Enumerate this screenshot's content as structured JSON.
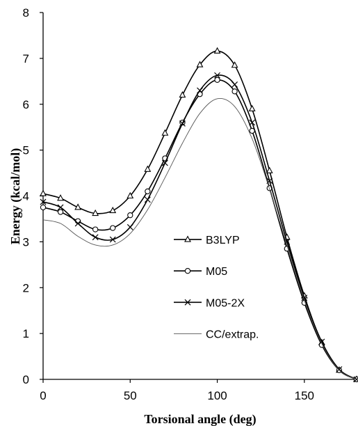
{
  "chart_data": {
    "type": "line",
    "xlabel": "Torsional angle (deg)",
    "ylabel": "Energy (kcal/mol)",
    "xlim": [
      0,
      180
    ],
    "ylim": [
      0,
      8
    ],
    "xticks": [
      "0",
      "50",
      "100",
      "150"
    ],
    "yticks": [
      "0",
      "1",
      "2",
      "3",
      "4",
      "5",
      "6",
      "7",
      "8"
    ],
    "grid": false,
    "legend_position": "center",
    "x": [
      0,
      10,
      20,
      30,
      40,
      50,
      60,
      70,
      80,
      90,
      100,
      110,
      120,
      130,
      140,
      150,
      160,
      170,
      180
    ],
    "series": [
      {
        "name": "B3LYP",
        "marker": "triangle",
        "values": [
          4.05,
          3.95,
          3.75,
          3.62,
          3.68,
          4.0,
          4.58,
          5.37,
          6.2,
          6.86,
          7.16,
          6.85,
          5.9,
          4.55,
          3.1,
          1.82,
          0.8,
          0.2,
          0.0
        ]
      },
      {
        "name": "M05",
        "marker": "circle",
        "values": [
          3.75,
          3.65,
          3.45,
          3.27,
          3.3,
          3.58,
          4.1,
          4.82,
          5.6,
          6.22,
          6.53,
          6.28,
          5.42,
          4.17,
          2.85,
          1.67,
          0.75,
          0.2,
          0.0
        ]
      },
      {
        "name": "M05-2X",
        "marker": "x",
        "values": [
          3.87,
          3.75,
          3.4,
          3.1,
          3.05,
          3.32,
          3.92,
          4.72,
          5.58,
          6.3,
          6.63,
          6.43,
          5.6,
          4.33,
          3.0,
          1.78,
          0.82,
          0.22,
          0.0
        ]
      },
      {
        "name": "CC/extrap.",
        "marker": "none",
        "values": [
          3.48,
          3.4,
          3.12,
          2.93,
          2.93,
          3.18,
          3.7,
          4.4,
          5.15,
          5.8,
          6.12,
          5.95,
          5.25,
          4.15,
          2.92,
          1.72,
          0.78,
          0.2,
          0.0
        ]
      }
    ]
  }
}
